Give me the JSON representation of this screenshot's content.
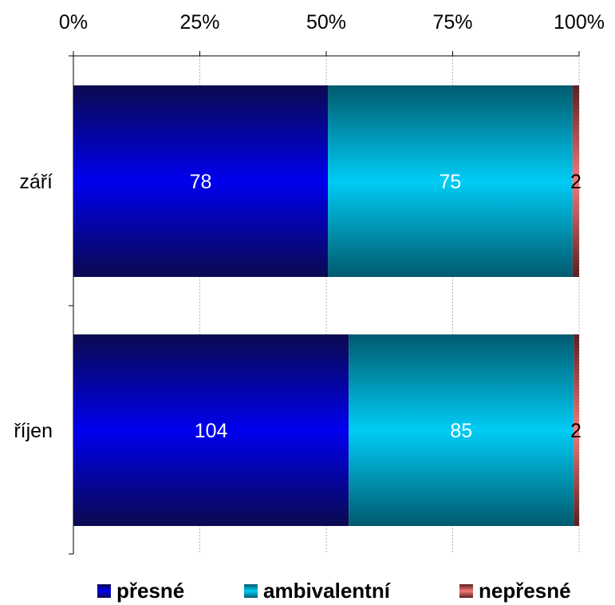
{
  "chart_data": {
    "type": "bar",
    "orientation": "horizontal",
    "stacking": "percent",
    "categories": [
      "září",
      "říjen"
    ],
    "series": [
      {
        "name": "přesné",
        "values": [
          78,
          104
        ],
        "color": "#0000dd"
      },
      {
        "name": "ambivalentní",
        "values": [
          75,
          85
        ],
        "color": "#00c8f0"
      },
      {
        "name": "nepřesné",
        "values": [
          2,
          2
        ],
        "color": "#f07070"
      }
    ],
    "xticks": [
      "0%",
      "25%",
      "50%",
      "75%",
      "100%"
    ],
    "xlim": [
      0,
      100
    ],
    "x_axis_position": "top",
    "grid": true,
    "legend_position": "bottom"
  }
}
